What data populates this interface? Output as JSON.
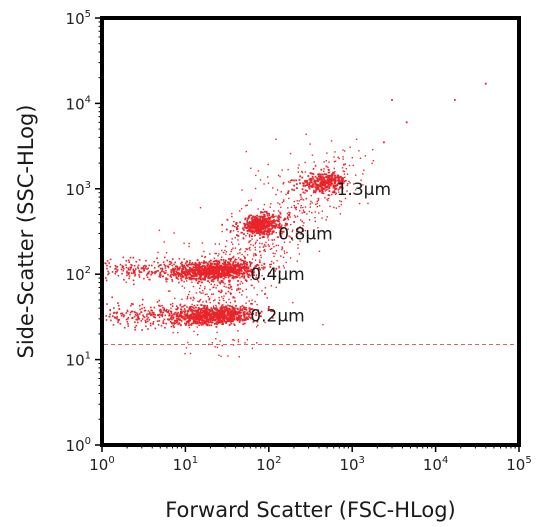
{
  "chart_data": {
    "type": "scatter",
    "xlabel": "Forward Scatter (FSC-HLog)",
    "ylabel": "Side-Scatter (SSC-HLog)",
    "xscale": "log",
    "yscale": "log",
    "xlim": [
      1,
      100000
    ],
    "ylim": [
      1,
      100000
    ],
    "grid": false,
    "x_ticks": [
      {
        "base": "10",
        "exp": "0",
        "value": 1
      },
      {
        "base": "10",
        "exp": "1",
        "value": 10
      },
      {
        "base": "10",
        "exp": "2",
        "value": 100
      },
      {
        "base": "10",
        "exp": "3",
        "value": 1000
      },
      {
        "base": "10",
        "exp": "4",
        "value": 10000
      },
      {
        "base": "10",
        "exp": "5",
        "value": 100000
      }
    ],
    "y_ticks": [
      {
        "base": "10",
        "exp": "0",
        "value": 1
      },
      {
        "base": "10",
        "exp": "1",
        "value": 10
      },
      {
        "base": "10",
        "exp": "2",
        "value": 100
      },
      {
        "base": "10",
        "exp": "3",
        "value": 1000
      },
      {
        "base": "10",
        "exp": "4",
        "value": 10000
      },
      {
        "base": "10",
        "exp": "5",
        "value": 100000
      }
    ],
    "threshold_line": {
      "y": 15,
      "style": "dashed",
      "color": "#e06060"
    },
    "point_color": "#e8252b",
    "clusters": [
      {
        "label": "0.2µm",
        "center_x": 25,
        "center_y": 33,
        "label_x": 60,
        "label_y": 33
      },
      {
        "label": "0.4µm",
        "center_x": 25,
        "center_y": 110,
        "label_x": 60,
        "label_y": 100
      },
      {
        "label": "0.8µm",
        "center_x": 80,
        "center_y": 380,
        "label_x": 130,
        "label_y": 300
      },
      {
        "label": "1.3µm",
        "center_x": 460,
        "center_y": 1200,
        "label_x": 650,
        "label_y": 1000
      }
    ],
    "outliers": [
      {
        "x": 40000,
        "y": 17000
      },
      {
        "x": 17000,
        "y": 11000
      },
      {
        "x": 4500,
        "y": 6000
      },
      {
        "x": 3000,
        "y": 11000
      },
      {
        "x": 2400,
        "y": 3500
      }
    ]
  }
}
